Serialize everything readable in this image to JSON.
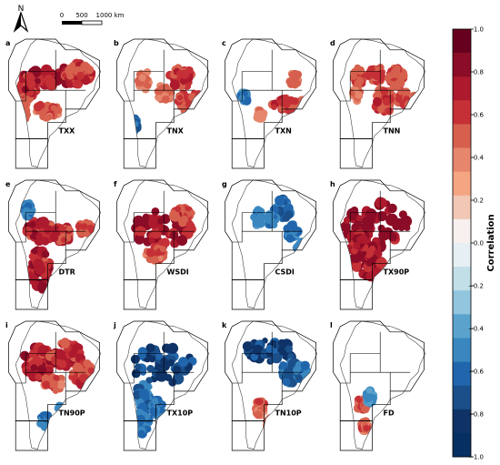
{
  "north_label": "N",
  "scale": {
    "ticks": [
      "0",
      "500",
      "1000 km"
    ]
  },
  "panels": [
    {
      "letter": "a",
      "name": "TXX",
      "type": "pos",
      "seed": 1,
      "regions": [
        [
          0.5,
          0.3,
          0.34,
          0.07,
          0.85
        ],
        [
          0.24,
          0.38,
          0.08,
          0.09,
          0.7
        ],
        [
          0.75,
          0.28,
          0.14,
          0.08,
          0.6
        ],
        [
          0.44,
          0.55,
          0.12,
          0.05,
          0.5
        ],
        [
          0.2,
          0.55,
          0.08,
          0.08,
          0.4
        ]
      ]
    },
    {
      "letter": "b",
      "name": "TNX",
      "type": "pos",
      "seed": 2,
      "regions": [
        [
          0.7,
          0.3,
          0.12,
          0.08,
          0.6
        ],
        [
          0.78,
          0.48,
          0.12,
          0.08,
          0.55
        ],
        [
          0.52,
          0.42,
          0.08,
          0.06,
          0.4
        ],
        [
          0.32,
          0.32,
          0.06,
          0.08,
          0.35
        ]
      ],
      "neg": [
        [
          0.22,
          0.65,
          0.04,
          0.05,
          0.6
        ]
      ]
    },
    {
      "letter": "c",
      "name": "TXN",
      "type": "pos",
      "seed": 3,
      "regions": [
        [
          0.68,
          0.5,
          0.16,
          0.05,
          0.6
        ],
        [
          0.74,
          0.32,
          0.06,
          0.05,
          0.4
        ],
        [
          0.58,
          0.78,
          0.06,
          0.04,
          0.4
        ],
        [
          0.4,
          0.58,
          0.04,
          0.04,
          0.3
        ]
      ],
      "neg": [
        [
          0.24,
          0.45,
          0.04,
          0.04,
          0.5
        ]
      ]
    },
    {
      "letter": "d",
      "name": "TNN",
      "type": "pos",
      "seed": 4,
      "regions": [
        [
          0.3,
          0.3,
          0.05,
          0.08,
          0.5
        ],
        [
          0.48,
          0.28,
          0.08,
          0.06,
          0.5
        ],
        [
          0.68,
          0.3,
          0.08,
          0.07,
          0.55
        ],
        [
          0.55,
          0.48,
          0.1,
          0.09,
          0.6
        ],
        [
          0.78,
          0.46,
          0.1,
          0.06,
          0.5
        ],
        [
          0.28,
          0.42,
          0.04,
          0.06,
          0.4
        ]
      ]
    },
    {
      "letter": "e",
      "name": "DTR",
      "type": "pos",
      "seed": 5,
      "regions": [
        [
          0.36,
          0.4,
          0.16,
          0.08,
          0.75
        ],
        [
          0.58,
          0.42,
          0.1,
          0.06,
          0.65
        ],
        [
          0.82,
          0.38,
          0.08,
          0.05,
          0.5
        ],
        [
          0.36,
          0.68,
          0.1,
          0.16,
          0.8
        ]
      ],
      "neg": [
        [
          0.24,
          0.24,
          0.04,
          0.06,
          0.5
        ]
      ]
    },
    {
      "letter": "f",
      "name": "WSDI",
      "type": "pos",
      "seed": 6,
      "regions": [
        [
          0.5,
          0.38,
          0.3,
          0.14,
          0.85
        ],
        [
          0.72,
          0.28,
          0.1,
          0.06,
          0.6
        ],
        [
          0.44,
          0.56,
          0.1,
          0.06,
          0.5
        ]
      ]
    },
    {
      "letter": "g",
      "name": "CSDI",
      "type": "neg",
      "seed": 7,
      "regions": [
        [
          0.62,
          0.24,
          0.08,
          0.08,
          0.7
        ],
        [
          0.52,
          0.32,
          0.05,
          0.05,
          0.5
        ],
        [
          0.72,
          0.4,
          0.06,
          0.06,
          0.55
        ],
        [
          0.38,
          0.3,
          0.05,
          0.06,
          0.5
        ],
        [
          0.82,
          0.52,
          0.05,
          0.05,
          0.5
        ]
      ]
    },
    {
      "letter": "h",
      "name": "TX90P",
      "type": "pos",
      "seed": 8,
      "regions": [
        [
          0.5,
          0.36,
          0.34,
          0.18,
          0.95
        ],
        [
          0.4,
          0.62,
          0.14,
          0.12,
          0.85
        ],
        [
          0.3,
          0.48,
          0.08,
          0.12,
          0.85
        ]
      ]
    },
    {
      "letter": "i",
      "name": "TN90P",
      "type": "pos",
      "seed": 9,
      "regions": [
        [
          0.34,
          0.32,
          0.14,
          0.12,
          0.8
        ],
        [
          0.62,
          0.26,
          0.16,
          0.1,
          0.7
        ],
        [
          0.8,
          0.42,
          0.12,
          0.1,
          0.6
        ],
        [
          0.5,
          0.48,
          0.1,
          0.06,
          0.5
        ]
      ],
      "neg": [
        [
          0.42,
          0.76,
          0.06,
          0.05,
          0.5
        ],
        [
          0.58,
          0.68,
          0.04,
          0.04,
          0.45
        ]
      ]
    },
    {
      "letter": "j",
      "name": "TX10P",
      "type": "neg",
      "seed": 10,
      "regions": [
        [
          0.52,
          0.34,
          0.32,
          0.14,
          0.9
        ],
        [
          0.32,
          0.58,
          0.08,
          0.1,
          0.6
        ],
        [
          0.3,
          0.78,
          0.08,
          0.08,
          0.55
        ],
        [
          0.46,
          0.66,
          0.06,
          0.06,
          0.5
        ]
      ]
    },
    {
      "letter": "k",
      "name": "TN10P",
      "type": "neg",
      "seed": 11,
      "regions": [
        [
          0.5,
          0.24,
          0.26,
          0.08,
          0.85
        ],
        [
          0.7,
          0.4,
          0.1,
          0.08,
          0.7
        ],
        [
          0.82,
          0.4,
          0.06,
          0.06,
          0.6
        ]
      ],
      "pos": [
        [
          0.4,
          0.66,
          0.05,
          0.06,
          0.45
        ],
        [
          0.5,
          0.78,
          0.04,
          0.04,
          0.4
        ]
      ]
    },
    {
      "letter": "l",
      "name": "FD",
      "type": "pos",
      "seed": 12,
      "regions": [
        [
          0.34,
          0.64,
          0.05,
          0.05,
          0.5
        ],
        [
          0.36,
          0.8,
          0.04,
          0.04,
          0.45
        ]
      ],
      "neg": [
        [
          0.42,
          0.58,
          0.04,
          0.05,
          0.45
        ]
      ]
    }
  ],
  "colorbar": {
    "label": "Correlation",
    "ticks": [
      "1.0",
      "0.8",
      "0.6",
      "0.4",
      "0.2",
      "0.0",
      "−0.2",
      "−0.4",
      "−0.6",
      "−0.8",
      "−1.0"
    ],
    "colors": [
      "#67001f",
      "#8a0c26",
      "#ad1a2d",
      "#c53036",
      "#d6604d",
      "#e5866d",
      "#f4a582",
      "#f2c7b6",
      "#f7f0ee",
      "#e6eff3",
      "#c2dfe8",
      "#92c5de",
      "#5ba3cc",
      "#3a87c0",
      "#2166ac",
      "#1a4f8a",
      "#0f3366",
      "#053061"
    ]
  }
}
